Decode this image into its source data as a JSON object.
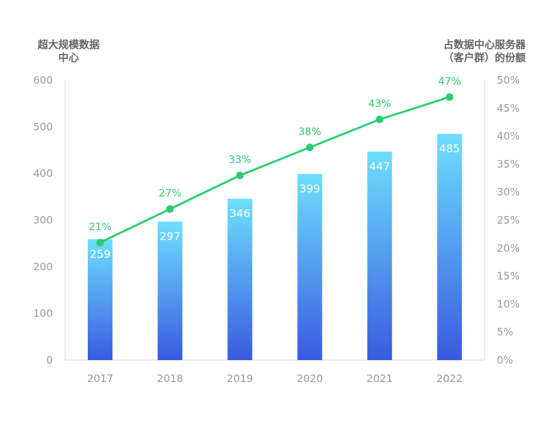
{
  "chart_data": {
    "type": "bar",
    "title": "",
    "ylabel_left": [
      "超大规模数据",
      "中心"
    ],
    "ylabel_right": [
      "占数据中心服务器",
      "（客户群）的份额"
    ],
    "categories": [
      "2017",
      "2018",
      "2019",
      "2020",
      "2021",
      "2022"
    ],
    "bar_series": {
      "values": [
        259,
        297,
        346,
        399,
        447,
        485
      ],
      "labels": [
        "259",
        "297",
        "346",
        "399",
        "447",
        "485"
      ]
    },
    "line_series": {
      "values": [
        21,
        27,
        33,
        38,
        43,
        47
      ],
      "labels": [
        "21%",
        "27%",
        "33%",
        "38%",
        "43%",
        "47%"
      ]
    },
    "y_left": {
      "min": 0,
      "max": 600,
      "step": 100,
      "ticks": [
        "0",
        "100",
        "200",
        "300",
        "400",
        "500",
        "600"
      ]
    },
    "y_right": {
      "min": 0,
      "max": 50,
      "step": 5,
      "ticks": [
        "0%",
        "5%",
        "10%",
        "15%",
        "20%",
        "25%",
        "30%",
        "35%",
        "40%",
        "45%",
        "50%"
      ]
    },
    "grid": false,
    "colors": {
      "bar_top": "#6ddffd",
      "bar_bottom": "#3a5ae0",
      "line": "#2ecc71",
      "axis": "#d9d9d9",
      "tick_text": "#999999"
    }
  }
}
